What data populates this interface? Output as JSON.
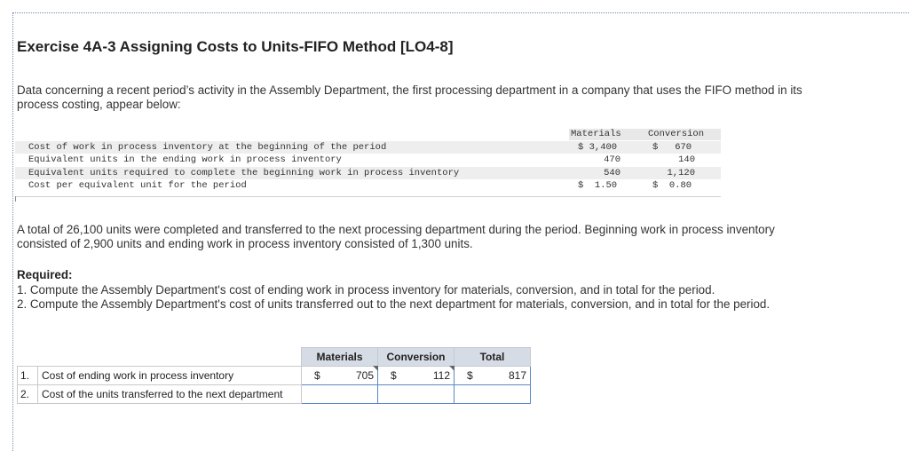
{
  "title": "Exercise 4A-3 Assigning Costs to Units-FIFO Method [LO4-8]",
  "intro": "Data concerning a recent period’s activity in the Assembly Department, the first processing department in a company that uses the FIFO method in its process costing, appear below:",
  "data_table": {
    "headers": {
      "materials": "Materials",
      "conversion": "Conversion"
    },
    "rows": [
      {
        "label": "Cost of work in process inventory at the beginning of the period",
        "materials": "$ 3,400",
        "conversion": "$   670"
      },
      {
        "label": "Equivalent units in the ending work in process inventory",
        "materials": "470",
        "conversion": "140"
      },
      {
        "label": "Equivalent units required to complete the beginning work in process inventory",
        "materials": "540",
        "conversion": "1,120"
      },
      {
        "label": "Cost per equivalent unit for the period",
        "materials": "$  1.50",
        "conversion": "$  0.80"
      }
    ]
  },
  "paragraph2": "A total of 26,100 units were completed and transferred to the next processing department during the period. Beginning work in process inventory consisted of 2,900 units and ending work in process inventory consisted of 1,300 units.",
  "required": {
    "heading": "Required:",
    "items": [
      "1. Compute the Assembly Department's cost of ending work in process inventory for materials, conversion, and in total for the period.",
      "2. Compute the Assembly Department's cost of units transferred out to the next department for materials, conversion, and in total for the period."
    ]
  },
  "answer_table": {
    "headers": {
      "materials": "Materials",
      "conversion": "Conversion",
      "total": "Total"
    },
    "rows": [
      {
        "num": "1.",
        "label": "Cost of ending work in process inventory",
        "materials": {
          "currency": "$",
          "value": "705"
        },
        "conversion": {
          "currency": "$",
          "value": "112"
        },
        "total": {
          "currency": "$",
          "value": "817"
        }
      },
      {
        "num": "2.",
        "label": "Cost of the units transferred to the next department",
        "materials": {
          "currency": "",
          "value": ""
        },
        "conversion": {
          "currency": "",
          "value": ""
        },
        "total": {
          "currency": "",
          "value": ""
        }
      }
    ]
  }
}
